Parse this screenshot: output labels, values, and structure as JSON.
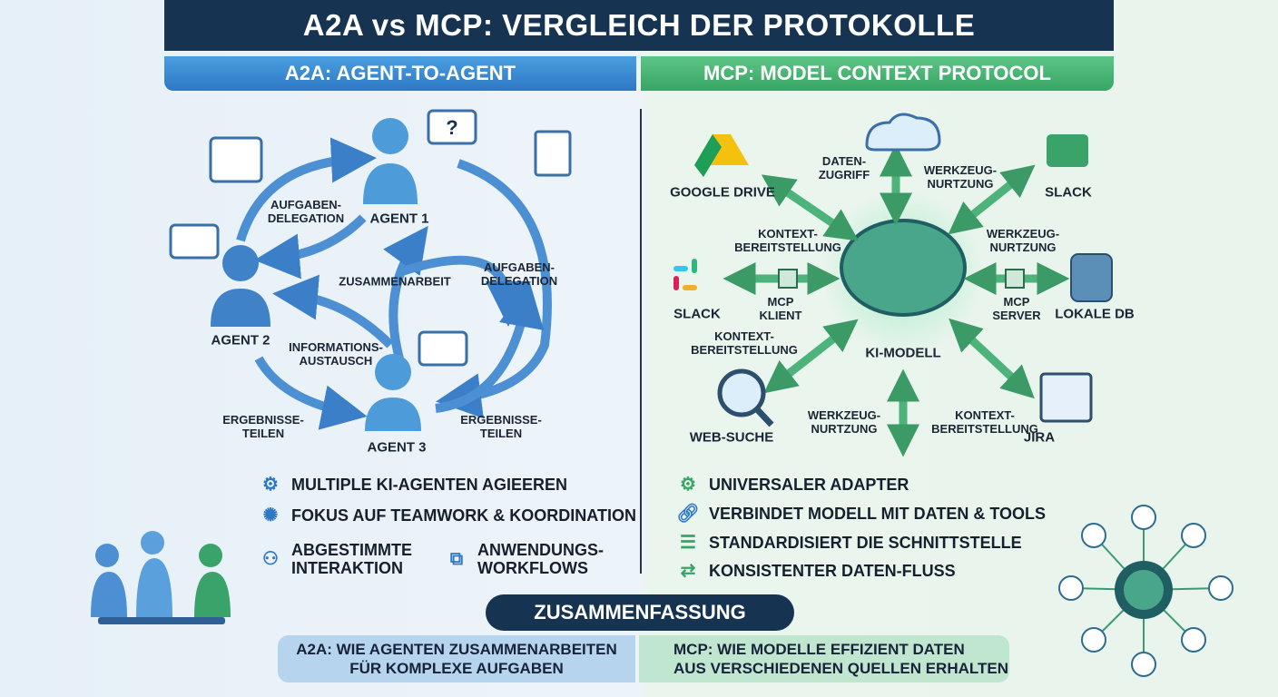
{
  "title": "A2A vs MCP: VERGLEICH DER PROTOKOLLE",
  "a2a": {
    "header": "A2A: AGENT-TO-AGENT",
    "labels": {
      "deleg1": "AUFGABEN-\nDELEGATION",
      "agent1": "AGENT 1",
      "zusammen": "ZUSAMMENARBEIT",
      "deleg2": "AUFGABEN-\nDELEGATION",
      "agent2": "AGENT 2",
      "info": "INFORMATIONS-\nAUSTAUSCH",
      "erg1": "ERGEBNISSE-\nTEILEN",
      "agent3": "AGENT 3",
      "erg2": "ERGEBNISSE-\nTEILEN"
    },
    "features": [
      "MULTIPLE KI-AGENTEN AGIEEREN",
      "FOKUS AUF TEAMWORK & KOORDINATION",
      "ABGESTIMMTE\nINTERAKTION",
      "ANWENDUNGS-\nWORKFLOWS"
    ],
    "accent": "#2d78c4"
  },
  "mcp": {
    "header": "MCP: MODEL CONTEXT PROTOCOL",
    "labels": {
      "gdrive": "GOOGLE DRIVE",
      "datenzugriff": "DATEN-\nZUGRIFF",
      "wz1": "WERKZEUG-\nNURTZUNG",
      "slack1": "SLACK",
      "kb1": "KONTEXT-\nBEREITSTELLUNG",
      "wz2": "WERKZEUG-\nNURTZUNG",
      "slack2": "SLACK",
      "klient": "MCP\nKLIENT",
      "server": "MCP\nSERVER",
      "db": "LOKALE DB",
      "kb2": "KONTEXT-\nBEREITSTELLUNG",
      "model": "KI-MODELL",
      "web": "WEB-SUCHE",
      "wz3": "WERKZEUG-\nNURTZUNG",
      "kb3": "KONTEXT-\nBEREITSTELLUNG",
      "jira": "JIRA"
    },
    "features": [
      "UNIVERSALER ADAPTER",
      "VERBINDET MODELL MIT DATEN & TOOLS",
      "STANDARDISIERT DIE SCHNITTSTELLE",
      "KONSISTENTER DATEN-FLUSS"
    ],
    "accent": "#37a565"
  },
  "summary": {
    "title": "ZUSAMMENFASSUNG",
    "a2a": "A2A: WIE AGENTEN ZUSAMMENARBEITEN\nFÜR KOMPLEXE AUFGABEN",
    "mcp": "MCP: WIE MODELLE EFFIZIENT DATEN\nAUS VERSCHIEDENEN QUELLEN ERHALTEN"
  }
}
